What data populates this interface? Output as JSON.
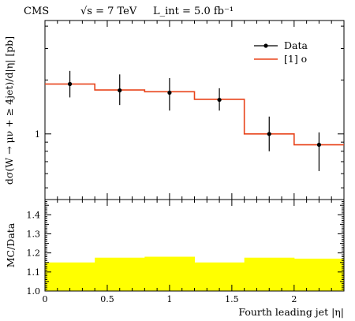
{
  "header": {
    "experiment": "CMS",
    "energy": "√s = 7 TeV",
    "lumi": "L_int = 5.0 fb⁻¹"
  },
  "colors": {
    "data": "#000000",
    "mc": "#e8431a",
    "ratio_band": "#ffff00"
  },
  "chart_data": [
    {
      "type": "line",
      "title": "",
      "xlabel": "",
      "ylabel": "dσ(W → μν + ≥ 4jet)/d|η| [pb]",
      "yscale": "log",
      "xlim": [
        0,
        2.4
      ],
      "ylim": [
        0.43,
        4.3
      ],
      "yticks": [
        {
          "value": 1,
          "label": "1"
        }
      ],
      "legend_position": "top-right",
      "series": [
        {
          "name": "Data",
          "kind": "points-with-errors",
          "x": [
            0.2,
            0.6,
            1.0,
            1.4,
            1.8,
            2.2
          ],
          "y": [
            1.9,
            1.75,
            1.7,
            1.55,
            1.0,
            0.87
          ],
          "yerr_low": [
            0.3,
            0.3,
            0.35,
            0.2,
            0.2,
            0.25
          ],
          "yerr_high": [
            0.35,
            0.4,
            0.35,
            0.25,
            0.25,
            0.15
          ]
        },
        {
          "name": "[1] o",
          "kind": "step",
          "bin_edges": [
            0,
            0.4,
            0.8,
            1.2,
            1.6,
            2.0,
            2.4
          ],
          "values": [
            1.9,
            1.76,
            1.72,
            1.56,
            1.0,
            0.87
          ]
        }
      ]
    },
    {
      "type": "area",
      "title": "",
      "xlabel": "Fourth leading jet |η|",
      "ylabel": "MC/Data",
      "xlim": [
        0,
        2.4
      ],
      "ylim": [
        1.0,
        1.48
      ],
      "xticks": [
        {
          "value": 0,
          "label": "0"
        },
        {
          "value": 0.5,
          "label": "0.5"
        },
        {
          "value": 1.0,
          "label": "1"
        },
        {
          "value": 1.5,
          "label": "1.5"
        },
        {
          "value": 2.0,
          "label": "2"
        }
      ],
      "yticks": [
        {
          "value": 1.0,
          "label": "1.0"
        },
        {
          "value": 1.1,
          "label": "1.1"
        },
        {
          "value": 1.2,
          "label": "1.2"
        },
        {
          "value": 1.3,
          "label": "1.3"
        },
        {
          "value": 1.4,
          "label": "1.4"
        }
      ],
      "series": [
        {
          "kind": "step-band",
          "bin_edges": [
            0,
            0.4,
            0.8,
            1.2,
            1.6,
            2.0,
            2.4
          ],
          "values": [
            1.15,
            1.175,
            1.18,
            1.15,
            1.175,
            1.17
          ]
        }
      ]
    }
  ]
}
